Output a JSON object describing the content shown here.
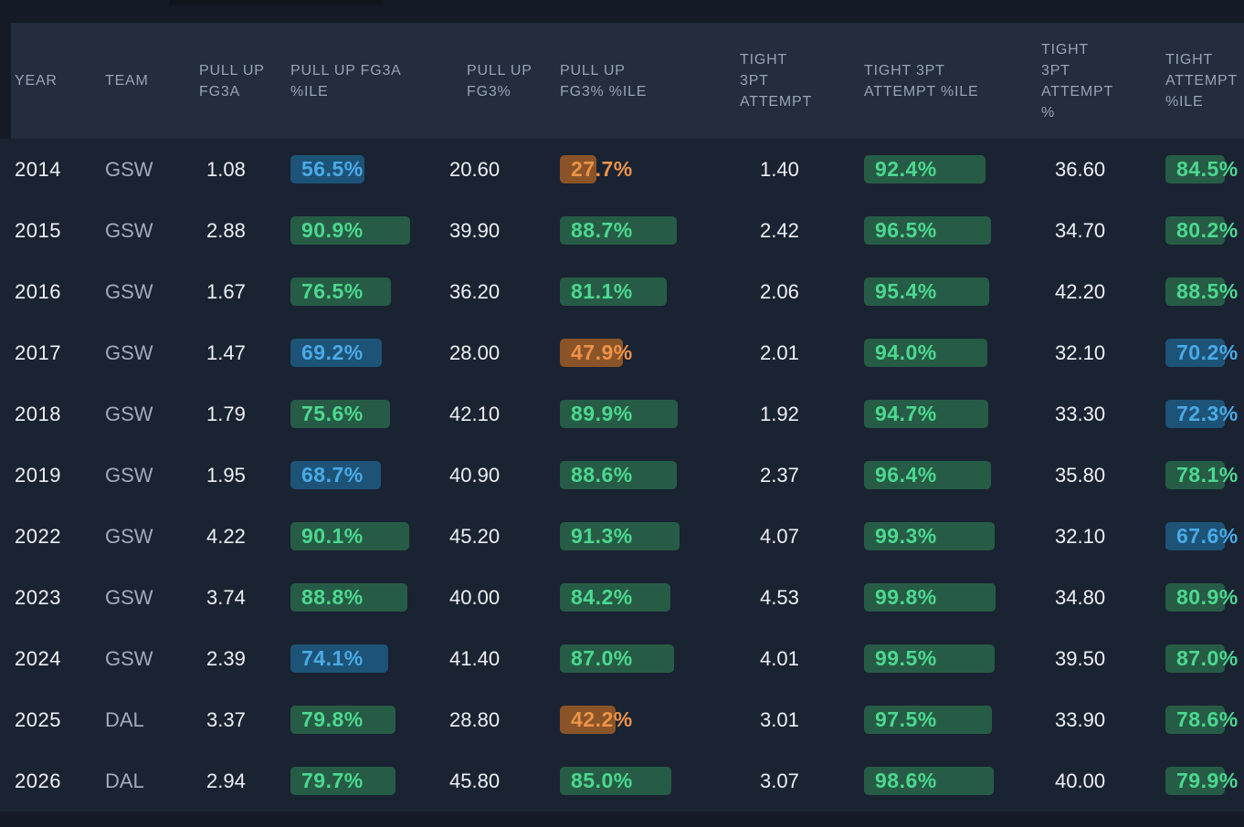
{
  "table": {
    "columns": [
      {
        "key": "year",
        "label": "YEAR"
      },
      {
        "key": "team",
        "label": "TEAM"
      },
      {
        "key": "pullup_fg3a",
        "label": "PULL UP FG3A"
      },
      {
        "key": "pullup_fg3a_pctile",
        "label": "PULL UP FG3A %ILE"
      },
      {
        "key": "pullup_fg3pct",
        "label": "PULL UP FG3%"
      },
      {
        "key": "pullup_fg3pct_pctile",
        "label": "PULL UP FG3% %ILE"
      },
      {
        "key": "tight_3pt_att",
        "label": "TIGHT 3PT ATTEMPT"
      },
      {
        "key": "tight_3pt_att_pctile",
        "label": "TIGHT 3PT ATTEMPT %ILE"
      },
      {
        "key": "tight_3pt_att_pct",
        "label": "TIGHT 3PT ATTEMPT %"
      },
      {
        "key": "tight_att_pctile",
        "label": "TIGHT ATTEMPT %ILE"
      }
    ],
    "rows": [
      {
        "year": "2014",
        "team": "GSW",
        "pullup_fg3a": "1.08",
        "pullup_fg3a_pctile": "56.5%",
        "pullup_fg3pct": "20.60",
        "pullup_fg3pct_pctile": "27.7%",
        "tight_3pt_att": "1.40",
        "tight_3pt_att_pctile": "92.4%",
        "tight_3pt_att_pct": "36.60",
        "tight_att_pctile": "84.5%"
      },
      {
        "year": "2015",
        "team": "GSW",
        "pullup_fg3a": "2.88",
        "pullup_fg3a_pctile": "90.9%",
        "pullup_fg3pct": "39.90",
        "pullup_fg3pct_pctile": "88.7%",
        "tight_3pt_att": "2.42",
        "tight_3pt_att_pctile": "96.5%",
        "tight_3pt_att_pct": "34.70",
        "tight_att_pctile": "80.2%"
      },
      {
        "year": "2016",
        "team": "GSW",
        "pullup_fg3a": "1.67",
        "pullup_fg3a_pctile": "76.5%",
        "pullup_fg3pct": "36.20",
        "pullup_fg3pct_pctile": "81.1%",
        "tight_3pt_att": "2.06",
        "tight_3pt_att_pctile": "95.4%",
        "tight_3pt_att_pct": "42.20",
        "tight_att_pctile": "88.5%"
      },
      {
        "year": "2017",
        "team": "GSW",
        "pullup_fg3a": "1.47",
        "pullup_fg3a_pctile": "69.2%",
        "pullup_fg3pct": "28.00",
        "pullup_fg3pct_pctile": "47.9%",
        "tight_3pt_att": "2.01",
        "tight_3pt_att_pctile": "94.0%",
        "tight_3pt_att_pct": "32.10",
        "tight_att_pctile": "70.2%"
      },
      {
        "year": "2018",
        "team": "GSW",
        "pullup_fg3a": "1.79",
        "pullup_fg3a_pctile": "75.6%",
        "pullup_fg3pct": "42.10",
        "pullup_fg3pct_pctile": "89.9%",
        "tight_3pt_att": "1.92",
        "tight_3pt_att_pctile": "94.7%",
        "tight_3pt_att_pct": "33.30",
        "tight_att_pctile": "72.3%"
      },
      {
        "year": "2019",
        "team": "GSW",
        "pullup_fg3a": "1.95",
        "pullup_fg3a_pctile": "68.7%",
        "pullup_fg3pct": "40.90",
        "pullup_fg3pct_pctile": "88.6%",
        "tight_3pt_att": "2.37",
        "tight_3pt_att_pctile": "96.4%",
        "tight_3pt_att_pct": "35.80",
        "tight_att_pctile": "78.1%"
      },
      {
        "year": "2022",
        "team": "GSW",
        "pullup_fg3a": "4.22",
        "pullup_fg3a_pctile": "90.1%",
        "pullup_fg3pct": "45.20",
        "pullup_fg3pct_pctile": "91.3%",
        "tight_3pt_att": "4.07",
        "tight_3pt_att_pctile": "99.3%",
        "tight_3pt_att_pct": "32.10",
        "tight_att_pctile": "67.6%"
      },
      {
        "year": "2023",
        "team": "GSW",
        "pullup_fg3a": "3.74",
        "pullup_fg3a_pctile": "88.8%",
        "pullup_fg3pct": "40.00",
        "pullup_fg3pct_pctile": "84.2%",
        "tight_3pt_att": "4.53",
        "tight_3pt_att_pctile": "99.8%",
        "tight_3pt_att_pct": "34.80",
        "tight_att_pctile": "80.9%"
      },
      {
        "year": "2024",
        "team": "GSW",
        "pullup_fg3a": "2.39",
        "pullup_fg3a_pctile": "74.1%",
        "pullup_fg3pct": "41.40",
        "pullup_fg3pct_pctile": "87.0%",
        "tight_3pt_att": "4.01",
        "tight_3pt_att_pctile": "99.5%",
        "tight_3pt_att_pct": "39.50",
        "tight_att_pctile": "87.0%"
      },
      {
        "year": "2025",
        "team": "DAL",
        "pullup_fg3a": "3.37",
        "pullup_fg3a_pctile": "79.8%",
        "pullup_fg3pct": "28.80",
        "pullup_fg3pct_pctile": "42.2%",
        "tight_3pt_att": "3.01",
        "tight_3pt_att_pctile": "97.5%",
        "tight_3pt_att_pct": "33.90",
        "tight_att_pctile": "78.6%"
      },
      {
        "year": "2026",
        "team": "DAL",
        "pullup_fg3a": "2.94",
        "pullup_fg3a_pctile": "79.7%",
        "pullup_fg3pct": "45.80",
        "pullup_fg3pct_pctile": "85.0%",
        "tight_3pt_att": "3.07",
        "tight_3pt_att_pctile": "98.6%",
        "tight_3pt_att_pct": "40.00",
        "tight_att_pctile": "79.9%"
      }
    ]
  },
  "percentile_scale": {
    "orange_below": 50,
    "blue_below": 75,
    "green_at_or_above": 75
  },
  "colors": {
    "page_bg": "#1a2332",
    "header_bg": "#232d3e",
    "strip_bg": "#141a26",
    "header_text": "#98a3b4",
    "value_text": "#edf0f4",
    "team_text": "#a2abb9",
    "green": {
      "text": "#4cd88f",
      "bg": "#265c46"
    },
    "blue": {
      "text": "#4aaae6",
      "bg": "#1d5377"
    },
    "orange": {
      "text": "#ee9348",
      "bg": "#8a5428"
    }
  }
}
